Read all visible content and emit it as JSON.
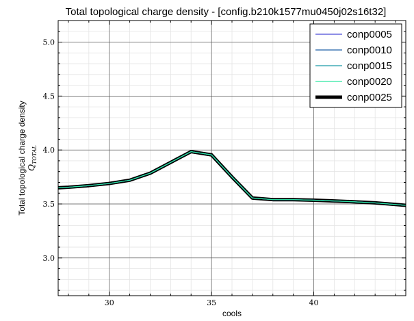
{
  "chart_data": {
    "type": "line",
    "title": "Total topological charge density - [config.b210k1577mu0450j02s16t32]",
    "xlabel": "cools",
    "ylabel": "Total topological charge density",
    "ylabel_sub": "Q_TOTAL",
    "xlim": [
      27.5,
      44.5
    ],
    "ylim": [
      2.65,
      5.2
    ],
    "x_major_ticks": [
      30,
      35,
      40
    ],
    "y_major_ticks": [
      3.0,
      3.5,
      4.0,
      4.5,
      5.0
    ],
    "x_minor_step": 1,
    "y_minor_step": 0.1,
    "grid": true,
    "legend_position": "top-right",
    "x": [
      27,
      28,
      29,
      30,
      31,
      32,
      33,
      34,
      35,
      36,
      37,
      38,
      39,
      40,
      41,
      42,
      43,
      44,
      45
    ],
    "series": [
      {
        "name": "conp0005",
        "color": "#4b4bd6",
        "width": 1.2,
        "values": [
          3.645,
          3.655,
          3.67,
          3.69,
          3.72,
          3.785,
          3.885,
          3.985,
          3.955,
          3.75,
          3.555,
          3.54,
          3.54,
          3.535,
          3.528,
          3.52,
          3.51,
          3.495,
          3.48
        ]
      },
      {
        "name": "conp0010",
        "color": "#1f5fa8",
        "width": 1.2,
        "values": [
          3.645,
          3.655,
          3.67,
          3.69,
          3.72,
          3.785,
          3.885,
          3.985,
          3.955,
          3.75,
          3.555,
          3.54,
          3.54,
          3.535,
          3.528,
          3.52,
          3.51,
          3.495,
          3.48
        ]
      },
      {
        "name": "conp0015",
        "color": "#1a9aa8",
        "width": 1.2,
        "values": [
          3.645,
          3.655,
          3.67,
          3.69,
          3.72,
          3.785,
          3.885,
          3.985,
          3.955,
          3.75,
          3.555,
          3.54,
          3.54,
          3.535,
          3.528,
          3.52,
          3.51,
          3.495,
          3.48
        ]
      },
      {
        "name": "conp0020",
        "color": "#2ee6a0",
        "width": 1.2,
        "values": [
          3.645,
          3.655,
          3.67,
          3.69,
          3.72,
          3.785,
          3.885,
          3.985,
          3.955,
          3.75,
          3.555,
          3.54,
          3.54,
          3.535,
          3.528,
          3.52,
          3.51,
          3.495,
          3.48
        ]
      },
      {
        "name": "conp0025",
        "color": "#000000",
        "width": 5,
        "values": [
          3.645,
          3.655,
          3.67,
          3.69,
          3.72,
          3.785,
          3.885,
          3.985,
          3.955,
          3.75,
          3.555,
          3.54,
          3.54,
          3.535,
          3.528,
          3.52,
          3.51,
          3.495,
          3.48
        ]
      }
    ]
  }
}
